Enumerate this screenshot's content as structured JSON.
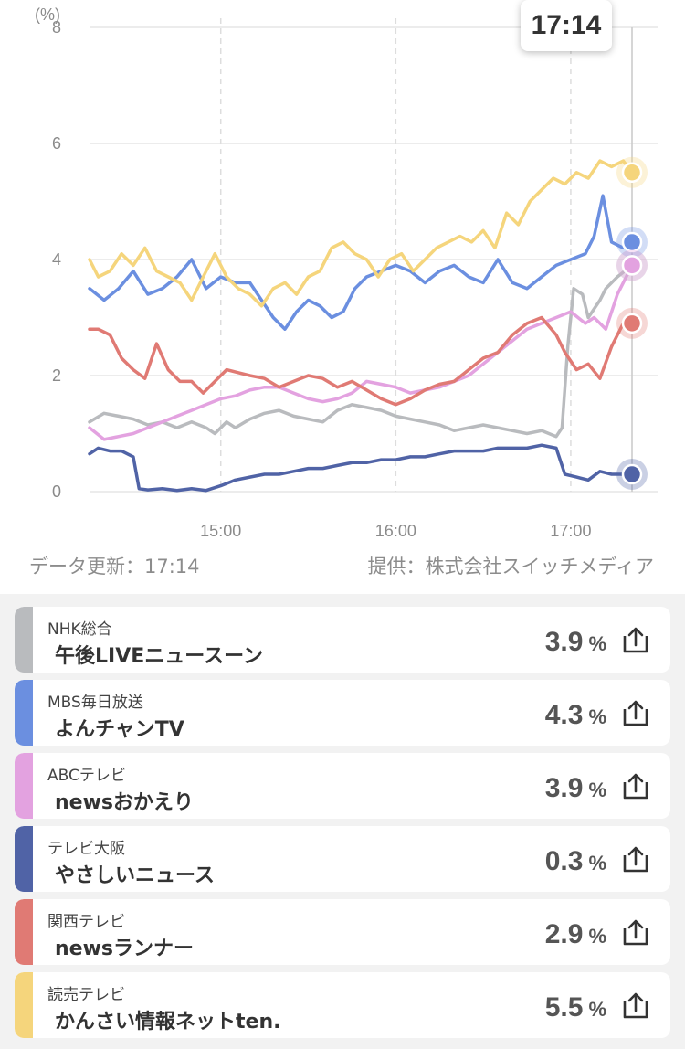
{
  "chart_data": {
    "type": "line",
    "y_unit_label": "(%)",
    "ylim": [
      0,
      8
    ],
    "y_ticks": [
      "0",
      "2",
      "4",
      "6",
      "8"
    ],
    "x_range_minutes": [
      855,
      1041
    ],
    "x_ticks": [
      {
        "minute": 900,
        "label": "15:00"
      },
      {
        "minute": 960,
        "label": "16:00"
      },
      {
        "minute": 1020,
        "label": "17:00"
      }
    ],
    "current_time_label": "17:14",
    "series": [
      {
        "name": "午後LIVEニュースーン",
        "color": "#b9bbbe",
        "points": [
          [
            855,
            1.2
          ],
          [
            860,
            1.35
          ],
          [
            865,
            1.3
          ],
          [
            870,
            1.25
          ],
          [
            875,
            1.15
          ],
          [
            880,
            1.2
          ],
          [
            885,
            1.1
          ],
          [
            890,
            1.2
          ],
          [
            895,
            1.1
          ],
          [
            898,
            1.0
          ],
          [
            902,
            1.2
          ],
          [
            905,
            1.1
          ],
          [
            910,
            1.25
          ],
          [
            915,
            1.35
          ],
          [
            920,
            1.4
          ],
          [
            925,
            1.3
          ],
          [
            930,
            1.25
          ],
          [
            935,
            1.2
          ],
          [
            940,
            1.4
          ],
          [
            945,
            1.5
          ],
          [
            950,
            1.45
          ],
          [
            955,
            1.4
          ],
          [
            960,
            1.3
          ],
          [
            965,
            1.25
          ],
          [
            970,
            1.2
          ],
          [
            975,
            1.15
          ],
          [
            980,
            1.05
          ],
          [
            985,
            1.1
          ],
          [
            990,
            1.15
          ],
          [
            995,
            1.1
          ],
          [
            1000,
            1.05
          ],
          [
            1005,
            1.0
          ],
          [
            1010,
            1.05
          ],
          [
            1015,
            0.95
          ],
          [
            1017,
            1.1
          ],
          [
            1019,
            2.5
          ],
          [
            1021,
            3.5
          ],
          [
            1024,
            3.4
          ],
          [
            1026,
            3.0
          ],
          [
            1030,
            3.3
          ],
          [
            1032,
            3.5
          ],
          [
            1036,
            3.7
          ],
          [
            1041,
            3.9
          ]
        ]
      },
      {
        "name": "よんチャンTV",
        "color": "#6b8fe0",
        "points": [
          [
            855,
            3.5
          ],
          [
            860,
            3.3
          ],
          [
            865,
            3.5
          ],
          [
            870,
            3.8
          ],
          [
            875,
            3.4
          ],
          [
            880,
            3.5
          ],
          [
            885,
            3.7
          ],
          [
            890,
            4.0
          ],
          [
            895,
            3.5
          ],
          [
            900,
            3.7
          ],
          [
            905,
            3.6
          ],
          [
            910,
            3.6
          ],
          [
            914,
            3.3
          ],
          [
            918,
            3.0
          ],
          [
            922,
            2.8
          ],
          [
            926,
            3.1
          ],
          [
            930,
            3.3
          ],
          [
            934,
            3.2
          ],
          [
            938,
            3.0
          ],
          [
            942,
            3.1
          ],
          [
            946,
            3.5
          ],
          [
            950,
            3.7
          ],
          [
            955,
            3.8
          ],
          [
            960,
            3.9
          ],
          [
            965,
            3.8
          ],
          [
            970,
            3.6
          ],
          [
            975,
            3.8
          ],
          [
            980,
            3.9
          ],
          [
            985,
            3.7
          ],
          [
            990,
            3.6
          ],
          [
            995,
            4.0
          ],
          [
            1000,
            3.6
          ],
          [
            1005,
            3.5
          ],
          [
            1010,
            3.7
          ],
          [
            1015,
            3.9
          ],
          [
            1020,
            4.0
          ],
          [
            1025,
            4.1
          ],
          [
            1028,
            4.4
          ],
          [
            1031,
            5.1
          ],
          [
            1034,
            4.3
          ],
          [
            1038,
            4.2
          ],
          [
            1041,
            4.3
          ]
        ]
      },
      {
        "name": "newsおかえり",
        "color": "#e3a2e0",
        "points": [
          [
            855,
            1.1
          ],
          [
            860,
            0.9
          ],
          [
            865,
            0.95
          ],
          [
            870,
            1.0
          ],
          [
            875,
            1.1
          ],
          [
            880,
            1.2
          ],
          [
            885,
            1.3
          ],
          [
            890,
            1.4
          ],
          [
            895,
            1.5
          ],
          [
            900,
            1.6
          ],
          [
            905,
            1.65
          ],
          [
            910,
            1.75
          ],
          [
            915,
            1.8
          ],
          [
            920,
            1.8
          ],
          [
            925,
            1.7
          ],
          [
            930,
            1.6
          ],
          [
            935,
            1.55
          ],
          [
            940,
            1.6
          ],
          [
            945,
            1.7
          ],
          [
            950,
            1.9
          ],
          [
            955,
            1.85
          ],
          [
            960,
            1.8
          ],
          [
            965,
            1.7
          ],
          [
            970,
            1.75
          ],
          [
            975,
            1.8
          ],
          [
            980,
            1.9
          ],
          [
            985,
            2.0
          ],
          [
            990,
            2.2
          ],
          [
            995,
            2.4
          ],
          [
            1000,
            2.6
          ],
          [
            1005,
            2.8
          ],
          [
            1010,
            2.9
          ],
          [
            1015,
            3.0
          ],
          [
            1020,
            3.1
          ],
          [
            1025,
            2.9
          ],
          [
            1028,
            3.0
          ],
          [
            1032,
            2.8
          ],
          [
            1036,
            3.4
          ],
          [
            1041,
            3.9
          ]
        ]
      },
      {
        "name": "やさしいニュース",
        "color": "#5063a6",
        "points": [
          [
            855,
            0.65
          ],
          [
            858,
            0.75
          ],
          [
            862,
            0.7
          ],
          [
            866,
            0.7
          ],
          [
            870,
            0.6
          ],
          [
            872,
            0.05
          ],
          [
            875,
            0.03
          ],
          [
            880,
            0.05
          ],
          [
            885,
            0.02
          ],
          [
            890,
            0.05
          ],
          [
            895,
            0.02
          ],
          [
            900,
            0.1
          ],
          [
            905,
            0.2
          ],
          [
            910,
            0.25
          ],
          [
            915,
            0.3
          ],
          [
            920,
            0.3
          ],
          [
            925,
            0.35
          ],
          [
            930,
            0.4
          ],
          [
            935,
            0.4
          ],
          [
            940,
            0.45
          ],
          [
            945,
            0.5
          ],
          [
            950,
            0.5
          ],
          [
            955,
            0.55
          ],
          [
            960,
            0.55
          ],
          [
            965,
            0.6
          ],
          [
            970,
            0.6
          ],
          [
            975,
            0.65
          ],
          [
            980,
            0.7
          ],
          [
            985,
            0.7
          ],
          [
            990,
            0.7
          ],
          [
            995,
            0.75
          ],
          [
            1000,
            0.75
          ],
          [
            1005,
            0.75
          ],
          [
            1010,
            0.8
          ],
          [
            1015,
            0.75
          ],
          [
            1018,
            0.3
          ],
          [
            1022,
            0.25
          ],
          [
            1026,
            0.2
          ],
          [
            1030,
            0.35
          ],
          [
            1034,
            0.3
          ],
          [
            1038,
            0.3
          ],
          [
            1041,
            0.3
          ]
        ]
      },
      {
        "name": "newsランナー",
        "color": "#e07a74",
        "points": [
          [
            855,
            2.8
          ],
          [
            858,
            2.8
          ],
          [
            862,
            2.7
          ],
          [
            866,
            2.3
          ],
          [
            870,
            2.1
          ],
          [
            874,
            1.95
          ],
          [
            878,
            2.55
          ],
          [
            882,
            2.1
          ],
          [
            886,
            1.9
          ],
          [
            890,
            1.9
          ],
          [
            894,
            1.7
          ],
          [
            898,
            1.9
          ],
          [
            902,
            2.1
          ],
          [
            906,
            2.05
          ],
          [
            910,
            2.0
          ],
          [
            915,
            1.95
          ],
          [
            920,
            1.8
          ],
          [
            925,
            1.9
          ],
          [
            930,
            2.0
          ],
          [
            935,
            1.95
          ],
          [
            940,
            1.8
          ],
          [
            945,
            1.9
          ],
          [
            950,
            1.75
          ],
          [
            955,
            1.6
          ],
          [
            960,
            1.5
          ],
          [
            965,
            1.6
          ],
          [
            970,
            1.75
          ],
          [
            975,
            1.85
          ],
          [
            980,
            1.9
          ],
          [
            985,
            2.1
          ],
          [
            990,
            2.3
          ],
          [
            995,
            2.4
          ],
          [
            1000,
            2.7
          ],
          [
            1005,
            2.9
          ],
          [
            1010,
            3.0
          ],
          [
            1015,
            2.7
          ],
          [
            1018,
            2.4
          ],
          [
            1022,
            2.1
          ],
          [
            1026,
            2.2
          ],
          [
            1030,
            1.95
          ],
          [
            1034,
            2.5
          ],
          [
            1038,
            2.9
          ],
          [
            1041,
            2.9
          ]
        ]
      },
      {
        "name": "かんさい情報ネットten.",
        "color": "#f5d57c",
        "points": [
          [
            855,
            4.0
          ],
          [
            858,
            3.7
          ],
          [
            862,
            3.8
          ],
          [
            866,
            4.1
          ],
          [
            870,
            3.9
          ],
          [
            874,
            4.2
          ],
          [
            878,
            3.8
          ],
          [
            882,
            3.7
          ],
          [
            886,
            3.6
          ],
          [
            890,
            3.3
          ],
          [
            894,
            3.7
          ],
          [
            898,
            4.1
          ],
          [
            902,
            3.7
          ],
          [
            906,
            3.5
          ],
          [
            910,
            3.4
          ],
          [
            914,
            3.2
          ],
          [
            918,
            3.5
          ],
          [
            922,
            3.6
          ],
          [
            926,
            3.4
          ],
          [
            930,
            3.7
          ],
          [
            934,
            3.8
          ],
          [
            938,
            4.2
          ],
          [
            942,
            4.3
          ],
          [
            946,
            4.1
          ],
          [
            950,
            4.0
          ],
          [
            954,
            3.7
          ],
          [
            958,
            4.0
          ],
          [
            962,
            4.1
          ],
          [
            966,
            3.8
          ],
          [
            970,
            4.0
          ],
          [
            974,
            4.2
          ],
          [
            978,
            4.3
          ],
          [
            982,
            4.4
          ],
          [
            986,
            4.3
          ],
          [
            990,
            4.5
          ],
          [
            994,
            4.2
          ],
          [
            998,
            4.8
          ],
          [
            1002,
            4.6
          ],
          [
            1006,
            5.0
          ],
          [
            1010,
            5.2
          ],
          [
            1014,
            5.4
          ],
          [
            1018,
            5.3
          ],
          [
            1022,
            5.5
          ],
          [
            1026,
            5.4
          ],
          [
            1030,
            5.7
          ],
          [
            1034,
            5.6
          ],
          [
            1038,
            5.7
          ],
          [
            1041,
            5.5
          ]
        ]
      }
    ]
  },
  "footer": {
    "updated": "データ更新：17:14",
    "provider": "提供：株式会社スイッチメディア"
  },
  "cards": [
    {
      "station": "NHK総合",
      "program": "午後LIVEニュースーン",
      "value": "3.9",
      "unit": "%",
      "color": "#b9bbbe",
      "icon": "share-icon"
    },
    {
      "station": "MBS毎日放送",
      "program": "よんチャンTV",
      "value": "4.3",
      "unit": "%",
      "color": "#6b8fe0",
      "icon": "share-icon"
    },
    {
      "station": "ABCテレビ",
      "program": "newsおかえり",
      "value": "3.9",
      "unit": "%",
      "color": "#e3a2e0",
      "icon": "share-icon"
    },
    {
      "station": "テレビ大阪",
      "program": "やさしいニュース",
      "value": "0.3",
      "unit": "%",
      "color": "#5063a6",
      "icon": "share-icon"
    },
    {
      "station": "関西テレビ",
      "program": "newsランナー",
      "value": "2.9",
      "unit": "%",
      "color": "#e07a74",
      "icon": "share-icon"
    },
    {
      "station": "読売テレビ",
      "program": "かんさい情報ネットten.",
      "value": "5.5",
      "unit": "%",
      "color": "#f5d57c",
      "icon": "share-icon"
    }
  ]
}
